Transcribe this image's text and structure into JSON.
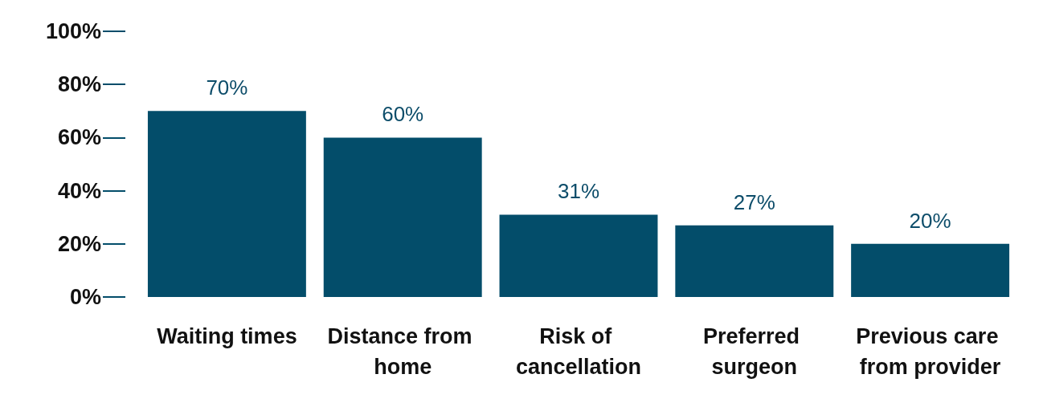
{
  "chart_data": {
    "type": "bar",
    "categories": [
      "Waiting times",
      "Distance from home",
      "Risk of cancellation",
      "Preferred surgeon",
      "Previous care from provider"
    ],
    "values": [
      70,
      60,
      31,
      27,
      20
    ],
    "value_labels": [
      "70%",
      "60%",
      "31%",
      "27%",
      "20%"
    ],
    "color": "#034d6a",
    "ylim": [
      0,
      100
    ],
    "yticks": [
      {
        "value": 0,
        "label": "0%"
      },
      {
        "value": 20,
        "label": "20%"
      },
      {
        "value": 40,
        "label": "40%"
      },
      {
        "value": 60,
        "label": "60%"
      },
      {
        "value": 80,
        "label": "80%"
      },
      {
        "value": 100,
        "label": "100%"
      }
    ],
    "grid": false
  }
}
